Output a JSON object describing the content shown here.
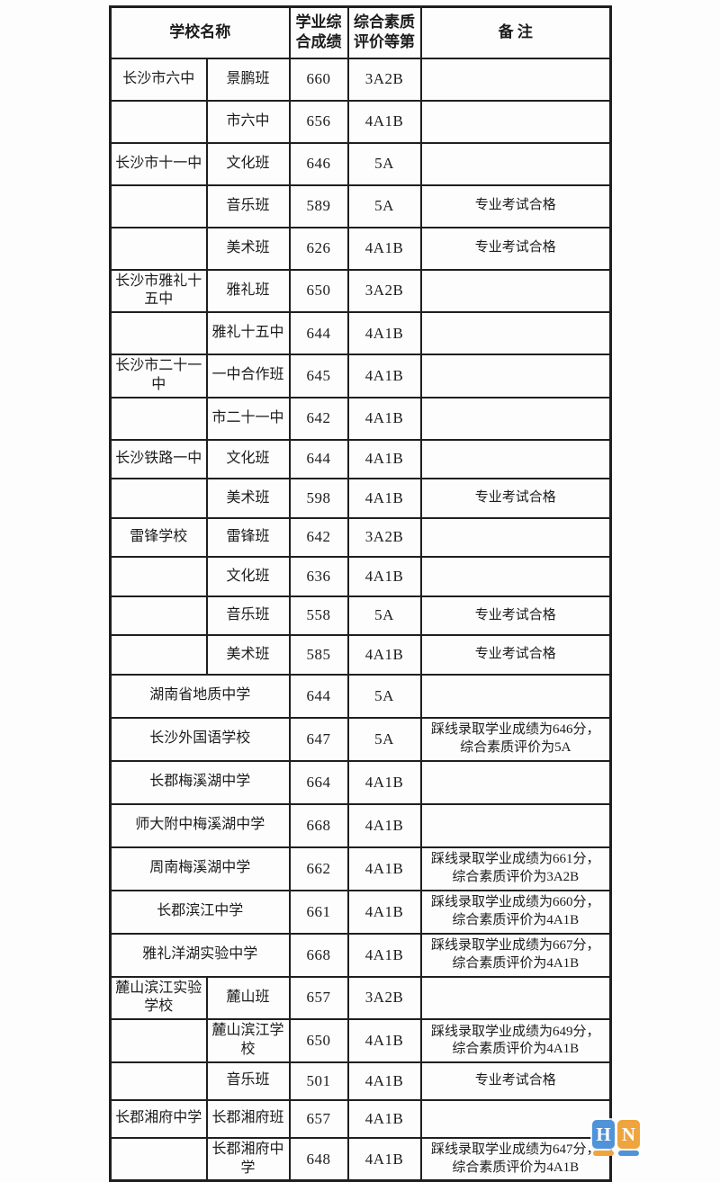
{
  "table": {
    "headers": {
      "school": "学校名称",
      "score": "学业综合成绩",
      "grade": "综合素质评价等第",
      "remark": "备 注"
    },
    "rows": [
      {
        "school": "长沙市六中",
        "class_name": "景鹏班",
        "merged": false,
        "score": "660",
        "grade": "3A2B",
        "remark": ""
      },
      {
        "school": "",
        "class_name": "市六中",
        "merged": false,
        "score": "656",
        "grade": "4A1B",
        "remark": ""
      },
      {
        "school": "长沙市十一中",
        "class_name": "文化班",
        "merged": false,
        "score": "646",
        "grade": "5A",
        "remark": ""
      },
      {
        "school": "",
        "class_name": "音乐班",
        "merged": false,
        "score": "589",
        "grade": "5A",
        "remark": "专业考试合格"
      },
      {
        "school": "",
        "class_name": "美术班",
        "merged": false,
        "score": "626",
        "grade": "4A1B",
        "remark": "专业考试合格"
      },
      {
        "school": "长沙市雅礼十五中",
        "class_name": "雅礼班",
        "merged": false,
        "score": "650",
        "grade": "3A2B",
        "remark": ""
      },
      {
        "school": "",
        "class_name": "雅礼十五中",
        "merged": false,
        "score": "644",
        "grade": "4A1B",
        "remark": ""
      },
      {
        "school": "长沙市二十一中",
        "class_name": "一中合作班",
        "merged": false,
        "score": "645",
        "grade": "4A1B",
        "remark": ""
      },
      {
        "school": "",
        "class_name": "市二十一中",
        "merged": false,
        "score": "642",
        "grade": "4A1B",
        "remark": ""
      },
      {
        "school": "长沙铁路一中",
        "class_name": "文化班",
        "merged": false,
        "score": "644",
        "grade": "4A1B",
        "remark": ""
      },
      {
        "school": "",
        "class_name": "美术班",
        "merged": false,
        "score": "598",
        "grade": "4A1B",
        "remark": "专业考试合格"
      },
      {
        "school": "雷锋学校",
        "class_name": "雷锋班",
        "merged": false,
        "score": "642",
        "grade": "3A2B",
        "remark": ""
      },
      {
        "school": "",
        "class_name": "文化班",
        "merged": false,
        "score": "636",
        "grade": "4A1B",
        "remark": ""
      },
      {
        "school": "",
        "class_name": "音乐班",
        "merged": false,
        "score": "558",
        "grade": "5A",
        "remark": "专业考试合格"
      },
      {
        "school": "",
        "class_name": "美术班",
        "merged": false,
        "score": "585",
        "grade": "4A1B",
        "remark": "专业考试合格"
      },
      {
        "school": "湖南省地质中学",
        "class_name": "",
        "merged": true,
        "score": "644",
        "grade": "5A",
        "remark": ""
      },
      {
        "school": "长沙外国语学校",
        "class_name": "",
        "merged": true,
        "score": "647",
        "grade": "5A",
        "remark": "踩线录取学业成绩为646分，综合素质评价为5A"
      },
      {
        "school": "长郡梅溪湖中学",
        "class_name": "",
        "merged": true,
        "score": "664",
        "grade": "4A1B",
        "remark": ""
      },
      {
        "school": "师大附中梅溪湖中学",
        "class_name": "",
        "merged": true,
        "score": "668",
        "grade": "4A1B",
        "remark": ""
      },
      {
        "school": "周南梅溪湖中学",
        "class_name": "",
        "merged": true,
        "score": "662",
        "grade": "4A1B",
        "remark": "踩线录取学业成绩为661分，综合素质评价为3A2B"
      },
      {
        "school": "长郡滨江中学",
        "class_name": "",
        "merged": true,
        "score": "661",
        "grade": "4A1B",
        "remark": "踩线录取学业成绩为660分，综合素质评价为4A1B"
      },
      {
        "school": "雅礼洋湖实验中学",
        "class_name": "",
        "merged": true,
        "score": "668",
        "grade": "4A1B",
        "remark": "踩线录取学业成绩为667分，综合素质评价为4A1B"
      },
      {
        "school": "麓山滨江实验学校",
        "class_name": "麓山班",
        "merged": false,
        "score": "657",
        "grade": "3A2B",
        "remark": ""
      },
      {
        "school": "",
        "class_name": "麓山滨江学校",
        "merged": false,
        "score": "650",
        "grade": "4A1B",
        "remark": "踩线录取学业成绩为649分，综合素质评价为4A1B"
      },
      {
        "school": "",
        "class_name": "音乐班",
        "merged": false,
        "score": "501",
        "grade": "4A1B",
        "remark": "专业考试合格"
      },
      {
        "school": "长郡湘府中学",
        "class_name": "长郡湘府班",
        "merged": false,
        "score": "657",
        "grade": "4A1B",
        "remark": ""
      },
      {
        "school": "",
        "class_name": "长郡湘府中学",
        "merged": false,
        "score": "648",
        "grade": "4A1B",
        "remark": "踩线录取学业成绩为647分，综合素质评价为4A1B"
      }
    ]
  },
  "watermark": {
    "left_letter": "H",
    "right_letter": "N"
  },
  "colors": {
    "logo_blue": "#4f93d8",
    "logo_orange": "#efa43e",
    "table_border": "#1f1f1f",
    "text": "#1c1c1c",
    "page_background": "#fdfdfd"
  }
}
